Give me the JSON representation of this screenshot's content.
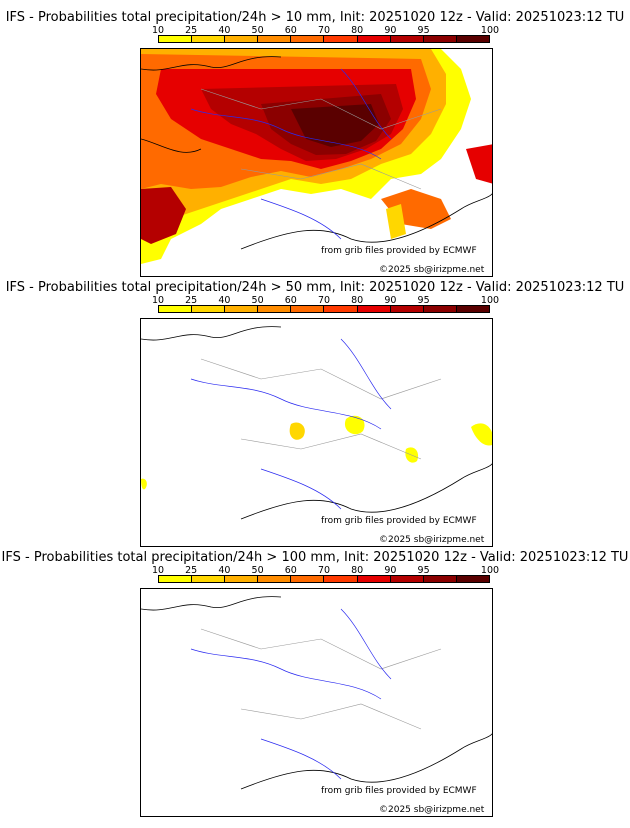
{
  "panels": [
    {
      "title": "IFS - Probabilities total precipitation/24h > 10 mm, Init: 20251020 12z - Valid: 20251023:12 TU",
      "credit_source": "from grib files provided by ECMWF",
      "credit_copyright": "©2025 sb@irizpme.net"
    },
    {
      "title": "IFS - Probabilities total precipitation/24h > 50 mm, Init: 20251020 12z - Valid: 20251023:12 TU",
      "credit_source": "from grib files provided by ECMWF",
      "credit_copyright": "©2025 sb@irizpme.net"
    },
    {
      "title": "IFS - Probabilities total precipitation/24h > 100 mm, Init: 20251020 12z - Valid: 20251023:12 TU",
      "credit_source": "from grib files provided by ECMWF",
      "credit_copyright": "©2025 sb@irizpme.net"
    }
  ],
  "colorbar": {
    "ticks": [
      "10",
      "25",
      "40",
      "50",
      "60",
      "70",
      "80",
      "90",
      "95",
      "100"
    ],
    "colors": [
      "#ffff00",
      "#ffd700",
      "#ffb000",
      "#ff8c00",
      "#ff6a00",
      "#ff3a00",
      "#e60000",
      "#b40000",
      "#8b0000",
      "#5a0000"
    ]
  },
  "style_colors": {
    "rivers": "#2a2af0",
    "borders": "#9a9a9a",
    "coast": "#000000"
  }
}
